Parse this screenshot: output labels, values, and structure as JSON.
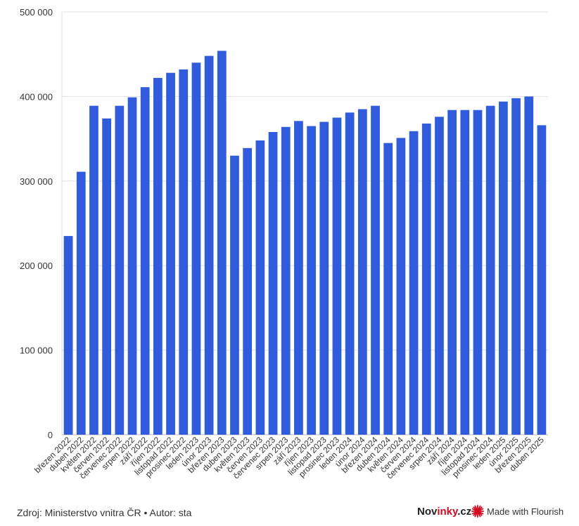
{
  "chart_data": {
    "type": "bar",
    "categories": [
      "březen 2022",
      "duben 2022",
      "květen 2022",
      "červen 2022",
      "červenec 2022",
      "srpen 2022",
      "září 2022",
      "říjen 2022",
      "listopad 2022",
      "prosinec 2022",
      "leden 2023",
      "únor 2023",
      "březen 2023",
      "duben 2023",
      "květen 2023",
      "červen 2023",
      "červenec 2023",
      "srpen 2023",
      "září 2023",
      "říjen 2023",
      "listopad 2023",
      "prosinec 2023",
      "leden 2024",
      "únor 2024",
      "březen 2024",
      "duben 2024",
      "květen 2024",
      "červen 2024",
      "červenec 2024",
      "srpen 2024",
      "září 2024",
      "říjen 2024",
      "listopad 2024",
      "prosinec 2024",
      "leden 2025",
      "únor 2025",
      "březen 2025",
      "duben 2025"
    ],
    "values": [
      235000,
      311000,
      389000,
      374000,
      389000,
      399000,
      411000,
      422000,
      428000,
      432000,
      440000,
      448000,
      454000,
      330000,
      339000,
      348000,
      358000,
      364000,
      371000,
      365000,
      370000,
      375000,
      381000,
      385000,
      389000,
      345000,
      351000,
      359000,
      368000,
      376000,
      384000,
      384000,
      384000,
      389000,
      394000,
      398000,
      400000,
      366000
    ],
    "ylim": [
      0,
      500000
    ],
    "yticks": [
      0,
      100000,
      200000,
      300000,
      400000,
      500000
    ],
    "ytick_labels": [
      "0",
      "100 000",
      "200 000",
      "300 000",
      "400 000",
      "500 000"
    ],
    "grid": true,
    "bar_color": "#2f5bde",
    "title": "",
    "xlabel": "",
    "ylabel": ""
  },
  "footer": {
    "source": "Zdroj: Ministerstvo vnitra ČR • Autor: sta",
    "brand_main": "Nov",
    "brand_accent": "inky",
    "brand_end": ".cz",
    "flourish": "Made with Flourish"
  }
}
